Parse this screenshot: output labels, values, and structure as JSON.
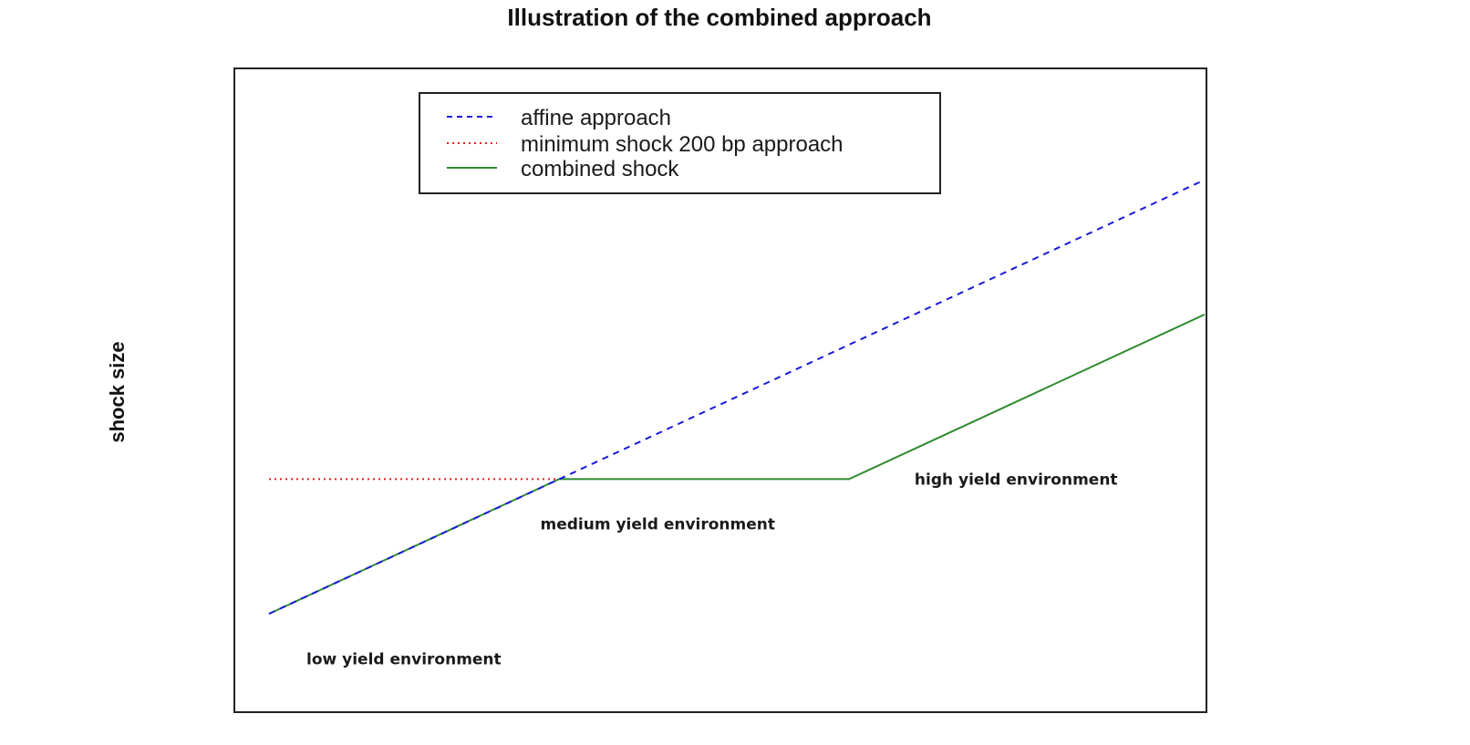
{
  "chart_data": {
    "type": "line",
    "title": "Illustration of the combined approach",
    "xlabel": "",
    "ylabel": "shock size",
    "grid": false,
    "axes_ticks": false,
    "legend_position": "top-center-left",
    "x_range": [
      0,
      10
    ],
    "y_range": [
      0,
      10
    ],
    "series": [
      {
        "name": "affine approach",
        "color": "#1a1adb",
        "style": "dashed",
        "x": [
          0,
          10
        ],
        "y": [
          2.4,
          8.2
        ]
      },
      {
        "name": "minimum shock 200 bp approach",
        "color": "#e02020",
        "style": "dotted",
        "x": [
          0,
          3.1
        ],
        "y": [
          4.2,
          4.2
        ]
      },
      {
        "name": "combined shock",
        "color": "#2e8b2e",
        "style": "solid",
        "x": [
          0,
          3.1,
          6.2,
          10
        ],
        "y": [
          2.4,
          4.2,
          4.2,
          6.4
        ]
      }
    ],
    "annotations": [
      {
        "text": "low yield environment",
        "x": 0.4,
        "y": 1.8
      },
      {
        "text": "medium yield environment",
        "x": 2.9,
        "y": 3.6
      },
      {
        "text": "high yield environment",
        "x": 6.9,
        "y": 4.2
      }
    ]
  },
  "legend": {
    "items": [
      {
        "label": "affine approach",
        "color": "#1a1adb",
        "style": "dashed"
      },
      {
        "label": "minimum shock 200 bp approach",
        "color": "#e02020",
        "style": "dotted"
      },
      {
        "label": "combined shock",
        "color": "#2e8b2e",
        "style": "solid"
      }
    ]
  }
}
